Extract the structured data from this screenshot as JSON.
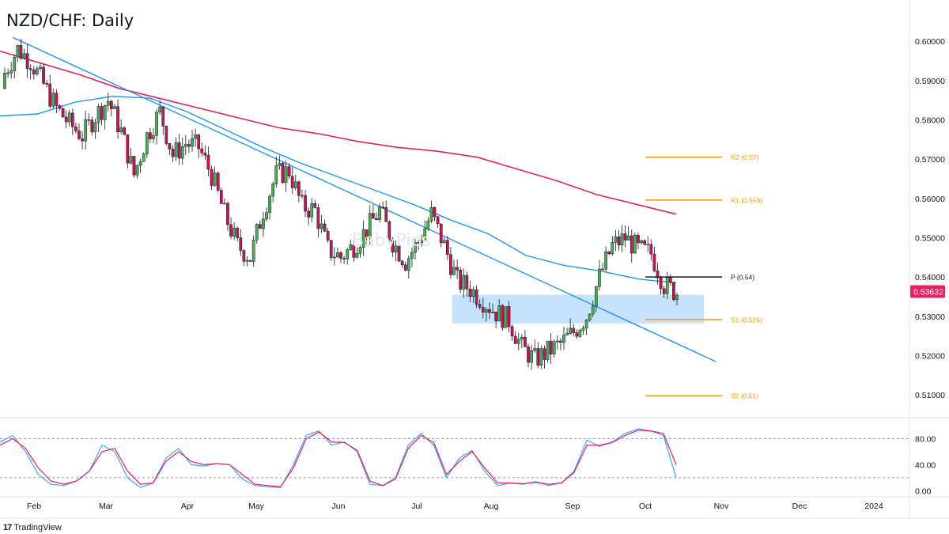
{
  "title": "NZD/CHF: Daily",
  "watermark": "BabyPips",
  "brand": {
    "name": "TradingView",
    "icon": "tradingview-logo-icon"
  },
  "colors": {
    "up": "#26a69a",
    "down": "#ef5350",
    "upFill": "#4caf50",
    "downFill": "#c2185b",
    "ma200": "#e91e63",
    "ma100": "#2196f3",
    "trendline": "#2196f3",
    "pivotOrange": "#ff9800",
    "pivotBlack": "#131722",
    "zone": "#bbdefb",
    "stochK": "#42a5f5",
    "stochD": "#e91e63",
    "priceTag": "#e91e63"
  },
  "chart_data": {
    "type": "candlestick",
    "title": "NZD/CHF: Daily",
    "price_axis": {
      "ticks": [
        "0.60000",
        "0.59000",
        "0.58000",
        "0.57000",
        "0.56000",
        "0.55000",
        "0.54000",
        "0.53000",
        "0.52000",
        "0.51000"
      ],
      "range": [
        0.5042,
        0.6105
      ]
    },
    "time_axis": {
      "labels": [
        "Feb",
        "Mar",
        "Apr",
        "May",
        "Jun",
        "Jul",
        "Aug",
        "Sep",
        "Oct",
        "Nov",
        "Dec",
        "2024"
      ]
    },
    "current_price": "0.53632",
    "candles_anchor_closes": [
      0.592,
      0.598,
      0.595,
      0.589,
      0.583,
      0.579,
      0.576,
      0.581,
      0.585,
      0.577,
      0.566,
      0.576,
      0.582,
      0.571,
      0.574,
      0.573,
      0.566,
      0.556,
      0.548,
      0.545,
      0.557,
      0.566,
      0.567,
      0.558,
      0.557,
      0.547,
      0.545,
      0.548,
      0.552,
      0.557,
      0.549,
      0.544,
      0.549,
      0.556,
      0.548,
      0.539,
      0.537,
      0.534,
      0.531,
      0.529,
      0.522,
      0.519,
      0.521,
      0.523,
      0.526,
      0.53,
      0.54,
      0.548,
      0.55,
      0.547,
      0.546,
      0.538,
      0.536
    ],
    "moving_averages": [
      {
        "name": "200-day SMA",
        "values": [
          0.5975,
          0.5945,
          0.5915,
          0.588,
          0.5855,
          0.583,
          0.5805,
          0.578,
          0.5765,
          0.5745,
          0.573,
          0.572,
          0.5705,
          0.5675,
          0.5645,
          0.561,
          0.5585,
          0.556
        ]
      },
      {
        "name": "100-day SMA",
        "values": [
          0.581,
          0.5815,
          0.5845,
          0.586,
          0.5855,
          0.582,
          0.5775,
          0.573,
          0.569,
          0.5655,
          0.562,
          0.5585,
          0.5545,
          0.551,
          0.5455,
          0.543,
          0.5415,
          0.5395,
          0.5385
        ]
      }
    ],
    "trendline": {
      "from": [
        "Jan",
        "0.6010"
      ],
      "to": [
        "Oct",
        "0.5185"
      ]
    },
    "support_zone": {
      "top": 0.5355,
      "bottom": 0.5282
    },
    "pivot_levels": [
      {
        "label": "R2 (0.57)",
        "value": 0.5705
      },
      {
        "label": "R1 (0.559)",
        "value": 0.5596
      },
      {
        "label": "P (0.54)",
        "value": 0.54
      },
      {
        "label": "S1 (0.529)",
        "value": 0.5292
      },
      {
        "label": "S2 (0.51)",
        "value": 0.5098
      }
    ],
    "stochastic": {
      "ticks": [
        "80.00",
        "40.00",
        "0.00"
      ],
      "range": [
        -2,
        100
      ],
      "levels": [
        80,
        20
      ],
      "k": [
        75,
        85,
        60,
        25,
        10,
        8,
        15,
        30,
        70,
        60,
        20,
        5,
        12,
        50,
        65,
        40,
        38,
        42,
        40,
        18,
        8,
        6,
        5,
        40,
        85,
        92,
        70,
        75,
        60,
        10,
        8,
        20,
        70,
        88,
        70,
        20,
        50,
        62,
        30,
        8,
        12,
        10,
        14,
        8,
        12,
        30,
        78,
        68,
        75,
        88,
        95,
        92,
        85,
        20
      ],
      "d": [
        70,
        80,
        65,
        35,
        15,
        10,
        15,
        30,
        60,
        65,
        30,
        10,
        12,
        45,
        60,
        45,
        40,
        42,
        40,
        25,
        10,
        8,
        6,
        35,
        80,
        90,
        75,
        74,
        62,
        15,
        8,
        18,
        65,
        85,
        74,
        25,
        45,
        60,
        35,
        12,
        12,
        11,
        13,
        10,
        12,
        28,
        70,
        70,
        74,
        85,
        93,
        92,
        88,
        40
      ]
    }
  },
  "axis_ticks_text": {
    "price": [
      "0.60000",
      "0.59000",
      "0.58000",
      "0.57000",
      "0.56000",
      "0.55000",
      "0.54000",
      "0.53000",
      "0.52000",
      "0.51000"
    ],
    "time": [
      "Feb",
      "Mar",
      "Apr",
      "May",
      "Jun",
      "Jul",
      "Aug",
      "Sep",
      "Oct",
      "Nov",
      "Dec",
      "2024"
    ],
    "stoch": [
      "80.00",
      "40.00",
      "0.00"
    ]
  }
}
